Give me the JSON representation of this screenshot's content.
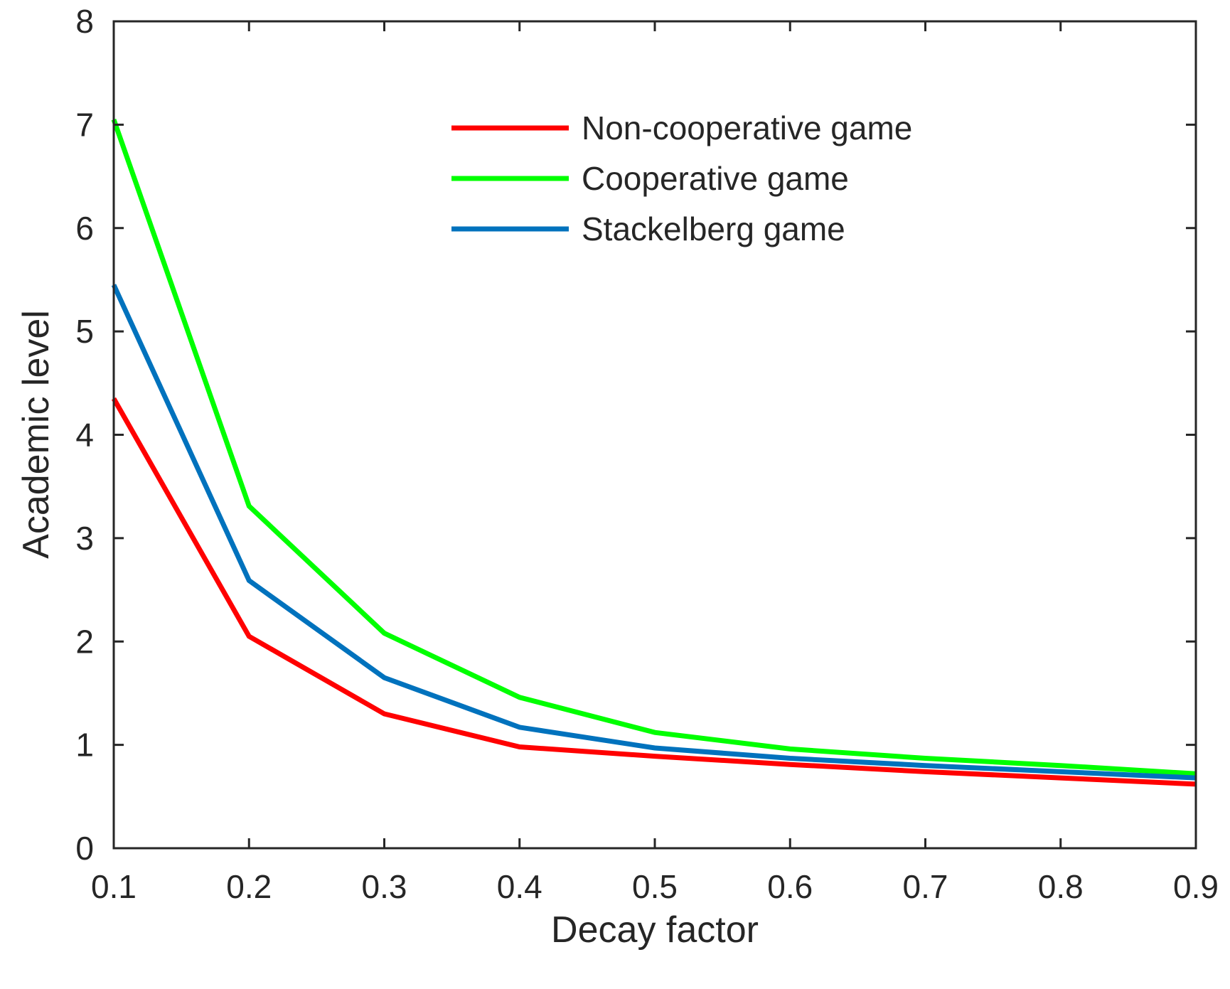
{
  "chart_data": {
    "type": "line",
    "title": "",
    "xlabel": "Decay factor",
    "ylabel": "Academic level",
    "xlim": [
      0.1,
      0.9
    ],
    "ylim": [
      0,
      8
    ],
    "xticks": [
      0.1,
      0.2,
      0.3,
      0.4,
      0.5,
      0.6,
      0.7,
      0.8,
      0.9
    ],
    "xtick_labels": [
      "0.1",
      "0.2",
      "0.3",
      "0.4",
      "0.5",
      "0.6",
      "0.7",
      "0.8",
      "0.9"
    ],
    "yticks": [
      0,
      1,
      2,
      3,
      4,
      5,
      6,
      7,
      8
    ],
    "ytick_labels": [
      "0",
      "1",
      "2",
      "3",
      "4",
      "5",
      "6",
      "7",
      "8"
    ],
    "grid": false,
    "legend_position": "top-right",
    "x": [
      0.1,
      0.2,
      0.3,
      0.4,
      0.5,
      0.6,
      0.7,
      0.8,
      0.9
    ],
    "series": [
      {
        "name": "Non-cooperative game",
        "color": "#ff0000",
        "values": [
          4.35,
          2.05,
          1.3,
          0.98,
          0.89,
          0.81,
          0.74,
          0.68,
          0.62
        ]
      },
      {
        "name": "Cooperative game",
        "color": "#00ff00",
        "values": [
          7.05,
          3.31,
          2.08,
          1.46,
          1.12,
          0.96,
          0.87,
          0.8,
          0.72
        ]
      },
      {
        "name": "Stackelberg game",
        "color": "#0072bd",
        "values": [
          5.45,
          2.59,
          1.65,
          1.17,
          0.97,
          0.87,
          0.8,
          0.74,
          0.68
        ]
      }
    ]
  }
}
